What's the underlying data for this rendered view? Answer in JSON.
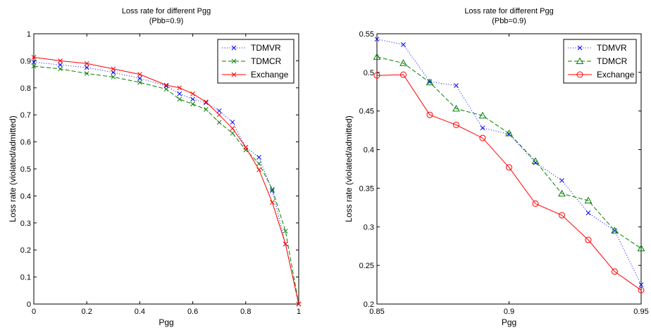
{
  "chart_data": [
    {
      "type": "line",
      "title": "Loss rate for different Pgg",
      "subtitle": "(Pbb=0.9)",
      "xlabel": "Pgg",
      "ylabel": "Loss rate (violated/admitted)",
      "xlim": [
        0,
        1
      ],
      "ylim": [
        0,
        1
      ],
      "xticks": [
        "0",
        "0.2",
        "0.4",
        "0.6",
        "0.8",
        "1"
      ],
      "yticks": [
        "0",
        "0.1",
        "0.2",
        "0.3",
        "0.4",
        "0.5",
        "0.6",
        "0.7",
        "0.8",
        "0.9",
        "1"
      ],
      "grid": false,
      "legend_position": "top-right",
      "series": [
        {
          "name": "TDMVR",
          "color": "#0000ff",
          "linestyle": "dotted",
          "marker": "x",
          "x": [
            0,
            0.1,
            0.2,
            0.3,
            0.4,
            0.5,
            0.55,
            0.6,
            0.65,
            0.7,
            0.75,
            0.8,
            0.85,
            0.9,
            0.95,
            1
          ],
          "y": [
            0.895,
            0.885,
            0.875,
            0.857,
            0.835,
            0.807,
            0.778,
            0.758,
            0.745,
            0.715,
            0.673,
            0.58,
            0.543,
            0.42,
            0.222,
            0.0
          ]
        },
        {
          "name": "TDMCR",
          "color": "#008000",
          "linestyle": "dashed",
          "marker": "x",
          "x": [
            0,
            0.1,
            0.2,
            0.3,
            0.4,
            0.5,
            0.55,
            0.6,
            0.65,
            0.7,
            0.75,
            0.8,
            0.85,
            0.9,
            0.95,
            1
          ],
          "y": [
            0.88,
            0.87,
            0.853,
            0.84,
            0.82,
            0.795,
            0.758,
            0.74,
            0.72,
            0.672,
            0.632,
            0.57,
            0.52,
            0.425,
            0.27,
            0.0
          ]
        },
        {
          "name": "Exchange",
          "color": "#ff0000",
          "linestyle": "solid",
          "marker": "x",
          "x": [
            0,
            0.1,
            0.2,
            0.3,
            0.4,
            0.5,
            0.55,
            0.6,
            0.65,
            0.7,
            0.75,
            0.8,
            0.85,
            0.9,
            0.95,
            1
          ],
          "y": [
            0.913,
            0.9,
            0.89,
            0.87,
            0.85,
            0.81,
            0.8,
            0.778,
            0.748,
            0.7,
            0.65,
            0.58,
            0.497,
            0.376,
            0.222,
            0.0
          ]
        }
      ]
    },
    {
      "type": "line",
      "title": "Loss rate for different Pgg",
      "subtitle": "(Pbb=0.9)",
      "xlabel": "Pgg",
      "ylabel": "Loss rate (violated/admitted)",
      "xlim": [
        0.85,
        0.95
      ],
      "ylim": [
        0.2,
        0.55
      ],
      "xticks": [
        "0.85",
        "0.9",
        "0.95"
      ],
      "yticks": [
        "0.2",
        "0.25",
        "0.3",
        "0.35",
        "0.4",
        "0.45",
        "0.5",
        "0.55"
      ],
      "grid": false,
      "legend_position": "top-right",
      "series": [
        {
          "name": "TDMVR",
          "color": "#0000ff",
          "linestyle": "dotted",
          "marker": "x",
          "x": [
            0.85,
            0.86,
            0.87,
            0.88,
            0.89,
            0.9,
            0.91,
            0.92,
            0.93,
            0.94,
            0.95
          ],
          "y": [
            0.543,
            0.536,
            0.488,
            0.483,
            0.428,
            0.42,
            0.383,
            0.36,
            0.318,
            0.295,
            0.225
          ]
        },
        {
          "name": "TDMCR",
          "color": "#008000",
          "linestyle": "dashed",
          "marker": "triangle",
          "x": [
            0.85,
            0.86,
            0.87,
            0.88,
            0.89,
            0.9,
            0.91,
            0.92,
            0.93,
            0.94,
            0.95
          ],
          "y": [
            0.52,
            0.512,
            0.487,
            0.453,
            0.444,
            0.421,
            0.385,
            0.343,
            0.334,
            0.295,
            0.272
          ]
        },
        {
          "name": "Exchange",
          "color": "#ff0000",
          "linestyle": "solid",
          "marker": "circle",
          "x": [
            0.85,
            0.86,
            0.87,
            0.88,
            0.89,
            0.9,
            0.91,
            0.92,
            0.93,
            0.94,
            0.95
          ],
          "y": [
            0.496,
            0.497,
            0.445,
            0.432,
            0.415,
            0.377,
            0.33,
            0.315,
            0.283,
            0.242,
            0.218
          ]
        }
      ]
    }
  ]
}
